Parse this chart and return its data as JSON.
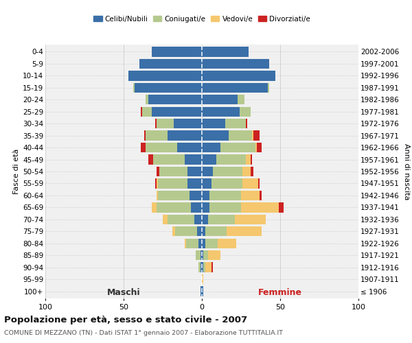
{
  "age_groups": [
    "0-4",
    "5-9",
    "10-14",
    "15-19",
    "20-24",
    "25-29",
    "30-34",
    "35-39",
    "40-44",
    "45-49",
    "50-54",
    "55-59",
    "60-64",
    "65-69",
    "70-74",
    "75-79",
    "80-84",
    "85-89",
    "90-94",
    "95-99",
    "100+"
  ],
  "birth_years": [
    "2002-2006",
    "1997-2001",
    "1992-1996",
    "1987-1991",
    "1982-1986",
    "1977-1981",
    "1972-1976",
    "1967-1971",
    "1962-1966",
    "1957-1961",
    "1952-1956",
    "1947-1951",
    "1942-1946",
    "1937-1941",
    "1932-1936",
    "1927-1931",
    "1922-1926",
    "1917-1921",
    "1912-1916",
    "1907-1911",
    "≤ 1906"
  ],
  "maschi_celibi": [
    32,
    40,
    47,
    43,
    34,
    32,
    18,
    22,
    16,
    11,
    9,
    9,
    8,
    7,
    5,
    3,
    2,
    1,
    1,
    0,
    1
  ],
  "maschi_coniugati": [
    0,
    0,
    0,
    1,
    2,
    6,
    11,
    14,
    20,
    20,
    18,
    19,
    20,
    22,
    17,
    14,
    8,
    3,
    1,
    0,
    0
  ],
  "maschi_vedovi": [
    0,
    0,
    0,
    0,
    0,
    0,
    0,
    0,
    0,
    0,
    0,
    1,
    1,
    3,
    3,
    2,
    1,
    0,
    0,
    0,
    0
  ],
  "maschi_divorziati": [
    0,
    0,
    0,
    0,
    0,
    1,
    1,
    1,
    3,
    3,
    2,
    1,
    0,
    0,
    0,
    0,
    0,
    0,
    0,
    0,
    0
  ],
  "femmine_nubili": [
    30,
    43,
    47,
    42,
    23,
    24,
    15,
    17,
    12,
    9,
    7,
    6,
    5,
    5,
    4,
    2,
    2,
    1,
    1,
    0,
    1
  ],
  "femmine_coniugate": [
    0,
    0,
    0,
    1,
    4,
    7,
    13,
    15,
    22,
    19,
    19,
    20,
    20,
    20,
    17,
    14,
    8,
    3,
    1,
    0,
    0
  ],
  "femmine_vedove": [
    0,
    0,
    0,
    0,
    0,
    0,
    0,
    1,
    1,
    3,
    5,
    10,
    12,
    24,
    20,
    22,
    12,
    8,
    4,
    1,
    0
  ],
  "femmine_divorziate": [
    0,
    0,
    0,
    0,
    0,
    0,
    1,
    4,
    3,
    1,
    2,
    1,
    1,
    3,
    0,
    0,
    0,
    0,
    1,
    0,
    0
  ],
  "color_celibi": "#3a6fa8",
  "color_coniugati": "#b5c98e",
  "color_vedovi": "#f5c76e",
  "color_divorziati": "#cc2222",
  "bg_color": "#f0f0f0",
  "grid_color": "#cccccc",
  "xlim": 100,
  "title": "Popolazione per età, sesso e stato civile - 2007",
  "subtitle": "COMUNE DI MEZZANO (TN) - Dati ISTAT 1° gennaio 2007 - Elaborazione TUTTITALIA.IT",
  "ylabel_left": "Fasce di età",
  "ylabel_right": "Anni di nascita",
  "maschi_label": "Maschi",
  "femmine_label": "Femmine",
  "legend_labels": [
    "Celibi/Nubili",
    "Coniugati/e",
    "Vedovi/e",
    "Divorziati/e"
  ]
}
